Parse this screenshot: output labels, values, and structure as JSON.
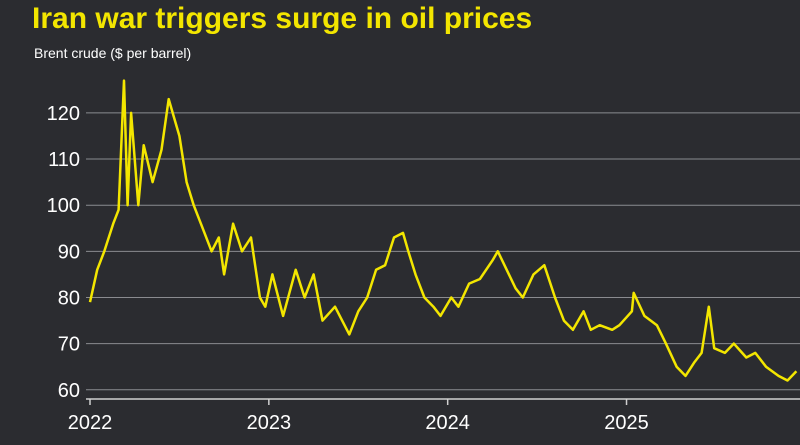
{
  "chart_data": {
    "type": "line",
    "title": "Iran war triggers surge in oil prices",
    "subtitle": "Brent crude ($ per barrel)",
    "x": [
      2022.0,
      2022.04,
      2022.08,
      2022.13,
      2022.16,
      2022.19,
      2022.21,
      2022.23,
      2022.27,
      2022.3,
      2022.35,
      2022.4,
      2022.44,
      2022.5,
      2022.54,
      2022.58,
      2022.62,
      2022.68,
      2022.72,
      2022.75,
      2022.8,
      2022.85,
      2022.9,
      2022.95,
      2022.98,
      2023.02,
      2023.08,
      2023.15,
      2023.2,
      2023.25,
      2023.3,
      2023.37,
      2023.45,
      2023.5,
      2023.55,
      2023.6,
      2023.65,
      2023.7,
      2023.75,
      2023.78,
      2023.82,
      2023.87,
      2023.92,
      2023.96,
      2024.02,
      2024.06,
      2024.12,
      2024.18,
      2024.25,
      2024.28,
      2024.33,
      2024.38,
      2024.42,
      2024.48,
      2024.54,
      2024.6,
      2024.65,
      2024.7,
      2024.76,
      2024.8,
      2024.85,
      2024.92,
      2024.96,
      2025.03,
      2025.04,
      2025.1,
      2025.17,
      2025.22,
      2025.28,
      2025.33,
      2025.38,
      2025.42,
      2025.46,
      2025.49,
      2025.55,
      2025.6,
      2025.67,
      2025.72,
      2025.78,
      2025.85,
      2025.9,
      2025.95
    ],
    "series": [
      {
        "name": "Brent crude",
        "color": "#f3e600",
        "values": [
          79,
          86,
          90,
          96,
          99,
          127,
          100,
          120,
          100,
          113,
          105,
          112,
          123,
          115,
          105,
          100,
          96,
          90,
          93,
          85,
          96,
          90,
          93,
          80,
          78,
          85,
          76,
          86,
          80,
          85,
          75,
          78,
          72,
          77,
          80,
          86,
          87,
          93,
          94,
          90,
          85,
          80,
          78,
          76,
          80,
          78,
          83,
          84,
          88,
          90,
          86,
          82,
          80,
          85,
          87,
          80,
          75,
          73,
          77,
          73,
          74,
          73,
          74,
          77,
          81,
          76,
          74,
          70,
          65,
          63,
          66,
          68,
          78,
          69,
          68,
          70,
          67,
          68,
          65,
          63,
          62,
          64
        ]
      }
    ],
    "xlim": [
      2022,
      2025.97
    ],
    "xticks": [
      2022,
      2023,
      2024,
      2025
    ],
    "ylim": [
      58,
      128
    ],
    "yticks": [
      60,
      70,
      80,
      90,
      100,
      110,
      120
    ],
    "grid": true
  }
}
